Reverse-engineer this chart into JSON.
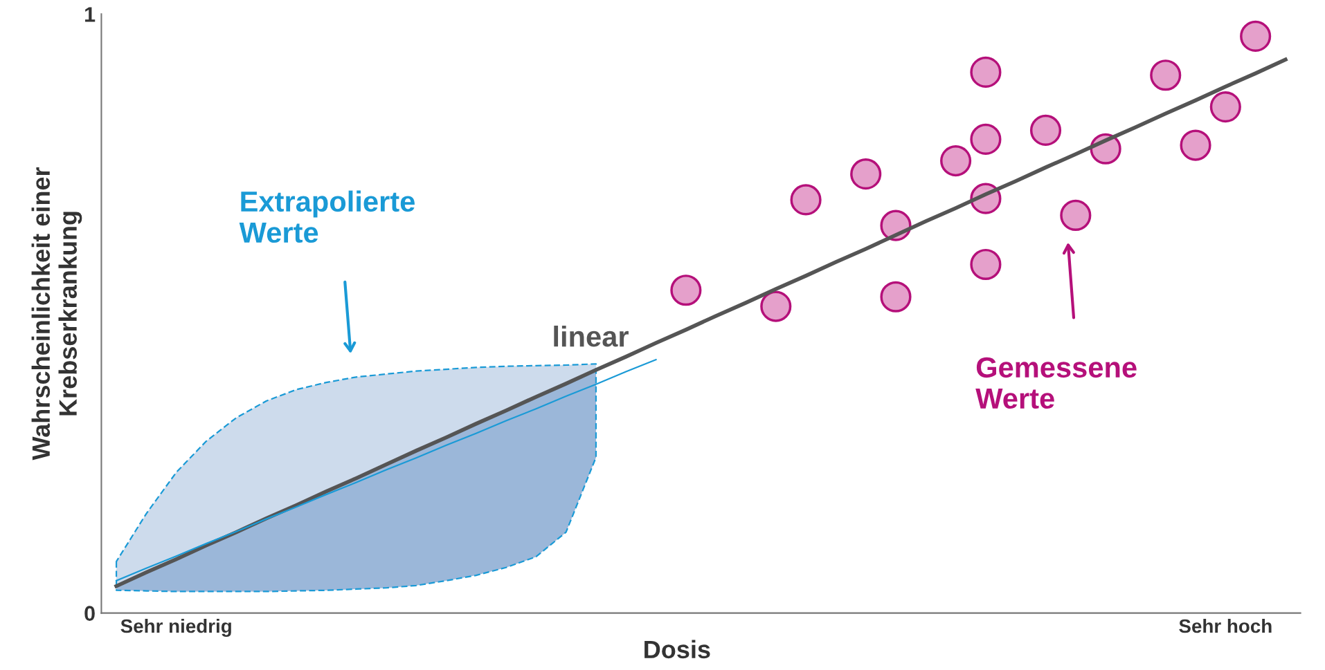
{
  "chart_data": {
    "type": "scatter",
    "xlabel": "Dosis",
    "ylabel": "Wahrscheinlichkeit einer\nKrebserkrankung",
    "categories": [
      null,
      null,
      "Sehr niedrig",
      null,
      null,
      null,
      null,
      null,
      null,
      null,
      null,
      null,
      null,
      null,
      null,
      null,
      null,
      null,
      null,
      null,
      null,
      null,
      null,
      null,
      null,
      null,
      null,
      null,
      null,
      null,
      null,
      null,
      null,
      null,
      null,
      null,
      null,
      "Sehr hoch",
      null,
      null
    ],
    "ylim": [
      0,
      1
    ],
    "yticks": [
      0,
      1
    ],
    "grid": false,
    "legend": false,
    "series": [
      {
        "type": "line",
        "color": "#1a9ad6",
        "line_style": "solid",
        "marker": "none",
        "values": [
          0.054,
          0.075,
          0.095,
          0.116,
          0.136,
          0.157,
          0.177,
          0.198,
          0.218,
          0.239,
          0.259,
          0.28,
          0.3,
          0.321,
          0.341,
          0.362,
          0.382,
          0.403,
          0.423,
          null,
          null,
          null,
          null,
          null,
          null,
          null,
          null,
          null,
          null,
          null,
          null,
          null,
          null,
          null,
          null,
          null,
          null,
          null,
          null,
          null
        ]
      },
      {
        "type": "line",
        "color": "#555555",
        "line_style": "solid",
        "marker": "none",
        "values": [
          0.045,
          0.068,
          0.09,
          0.113,
          0.135,
          0.158,
          0.18,
          0.203,
          0.225,
          0.248,
          0.271,
          0.293,
          0.316,
          0.338,
          0.361,
          0.383,
          0.406,
          0.428,
          0.451,
          0.473,
          0.496,
          0.518,
          0.541,
          0.563,
          0.586,
          0.608,
          0.631,
          0.654,
          0.676,
          0.699,
          0.721,
          0.744,
          0.766,
          0.789,
          0.811,
          0.834,
          0.856,
          0.879,
          0.901,
          0.924
        ],
        "upper": [
          0.086,
          0.166,
          0.235,
          0.287,
          0.326,
          0.354,
          0.373,
          0.385,
          0.394,
          0.399,
          0.404,
          0.407,
          0.41,
          0.412,
          0.413,
          0.414,
          0.416,
          null,
          null,
          null,
          null,
          null,
          null,
          null,
          null,
          null,
          null,
          null,
          null,
          null,
          null,
          null,
          null,
          null,
          null,
          null,
          null,
          null,
          null,
          null
        ],
        "lower": [
          0.038,
          0.037,
          0.036,
          0.036,
          0.036,
          0.036,
          0.037,
          0.038,
          0.04,
          0.042,
          0.046,
          0.054,
          0.063,
          0.076,
          0.094,
          0.135,
          0.26,
          null,
          null,
          null,
          null,
          null,
          null,
          null,
          null,
          null,
          null,
          null,
          null,
          null,
          null,
          null,
          null,
          null,
          null,
          null,
          null,
          null,
          null,
          null
        ]
      },
      {
        "color": "#e5a0cb",
        "marker": "circle",
        "values": [
          null,
          null,
          null,
          null,
          null,
          null,
          null,
          null,
          null,
          null,
          null,
          null,
          null,
          null,
          null,
          null,
          null,
          null,
          null,
          0.539,
          null,
          null,
          0.512,
          0.69,
          null,
          0.733,
          0.647,
          null,
          0.755,
          0.903,
          null,
          0.806,
          0.664,
          0.775,
          null,
          0.898,
          0.781,
          0.845,
          0.963,
          null
        ]
      },
      {
        "color": "#e5a0cb",
        "marker": "circle",
        "values": [
          null,
          null,
          null,
          null,
          null,
          null,
          null,
          null,
          null,
          null,
          null,
          null,
          null,
          null,
          null,
          null,
          null,
          null,
          null,
          null,
          null,
          null,
          null,
          null,
          null,
          null,
          0.528,
          null,
          null,
          0.791,
          null,
          null,
          null,
          null,
          null,
          null,
          null,
          null,
          null,
          null
        ]
      },
      {
        "color": "#e5a0cb",
        "marker": "circle",
        "values": [
          null,
          null,
          null,
          null,
          null,
          null,
          null,
          null,
          null,
          null,
          null,
          null,
          null,
          null,
          null,
          null,
          null,
          null,
          null,
          null,
          null,
          null,
          null,
          null,
          null,
          null,
          null,
          null,
          null,
          0.692,
          null,
          null,
          null,
          null,
          null,
          null,
          null,
          null,
          null,
          null
        ]
      },
      {
        "color": "#e5a0cb",
        "marker": "circle",
        "values": [
          null,
          null,
          null,
          null,
          null,
          null,
          null,
          null,
          null,
          null,
          null,
          null,
          null,
          null,
          null,
          null,
          null,
          null,
          null,
          null,
          null,
          null,
          null,
          null,
          null,
          null,
          null,
          null,
          null,
          0.582,
          null,
          null,
          null,
          null,
          null,
          null,
          null,
          null,
          null,
          null
        ]
      }
    ],
    "annotations": [
      "Extrapolierte\nWerte",
      "linear",
      "Gemessene\nWerte"
    ]
  }
}
